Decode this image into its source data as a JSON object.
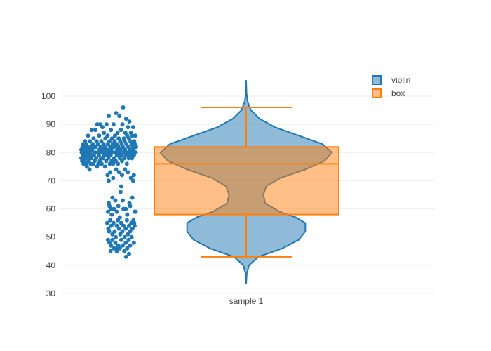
{
  "chart_data": {
    "type": "violin",
    "x_categories": [
      "sample 1"
    ],
    "ylim": [
      30,
      105
    ],
    "y_ticks": [
      30,
      40,
      50,
      60,
      70,
      80,
      90,
      100
    ],
    "grid": true,
    "legend": {
      "position": "top-right",
      "items": [
        "violin",
        "box"
      ]
    },
    "series": [
      {
        "name": "violin",
        "kind": "violin",
        "color": "#1f77b4",
        "fill": "rgba(31,119,180,0.5)",
        "span": [
          33.5,
          105.5
        ],
        "profile": [
          [
            33.5,
            0.0
          ],
          [
            37,
            0.006
          ],
          [
            40,
            0.03
          ],
          [
            43,
            0.13
          ],
          [
            46,
            0.38
          ],
          [
            49,
            0.55
          ],
          [
            52,
            0.62
          ],
          [
            55,
            0.62
          ],
          [
            57,
            0.52
          ],
          [
            59,
            0.35
          ],
          [
            62,
            0.2
          ],
          [
            65,
            0.18
          ],
          [
            68,
            0.21
          ],
          [
            71,
            0.36
          ],
          [
            74,
            0.62
          ],
          [
            77,
            0.82
          ],
          [
            80,
            0.9
          ],
          [
            83,
            0.8
          ],
          [
            86,
            0.55
          ],
          [
            89,
            0.3
          ],
          [
            92,
            0.14
          ],
          [
            95,
            0.05
          ],
          [
            98,
            0.015
          ],
          [
            101,
            0.004
          ],
          [
            105.5,
            0.0
          ]
        ]
      },
      {
        "name": "box",
        "kind": "box",
        "color": "#ff7f0e",
        "fill": "rgba(255,127,14,0.5)",
        "whisker_low": 43,
        "q1": 58,
        "median": 76,
        "q3": 82,
        "whisker_high": 96
      }
    ],
    "points": {
      "color": "#1f77b4",
      "values": [
        [
          46,
          81
        ],
        [
          46,
          78
        ],
        [
          47,
          80
        ],
        [
          48,
          77
        ],
        [
          49,
          82
        ],
        [
          50,
          79
        ],
        [
          51,
          83
        ],
        [
          52,
          76
        ],
        [
          53,
          80
        ],
        [
          54,
          82
        ],
        [
          55,
          78
        ],
        [
          55,
          77
        ],
        [
          56,
          84
        ],
        [
          57,
          81
        ],
        [
          58,
          79
        ],
        [
          59,
          83
        ],
        [
          59,
          76
        ],
        [
          60,
          80
        ],
        [
          61,
          75
        ],
        [
          62,
          82
        ],
        [
          63,
          78
        ],
        [
          64,
          86
        ],
        [
          65,
          81
        ],
        [
          66,
          77
        ],
        [
          67,
          79
        ],
        [
          68,
          74
        ],
        [
          69,
          84
        ],
        [
          70,
          80
        ],
        [
          71,
          76
        ],
        [
          72,
          82
        ],
        [
          73,
          78
        ],
        [
          74,
          88
        ],
        [
          75,
          81
        ],
        [
          76,
          79
        ],
        [
          77,
          83
        ],
        [
          78,
          76
        ],
        [
          79,
          85
        ],
        [
          80,
          79
        ],
        [
          81,
          82
        ],
        [
          82,
          77
        ],
        [
          83,
          80
        ],
        [
          84,
          88
        ],
        [
          85,
          82
        ],
        [
          86,
          78
        ],
        [
          87,
          84
        ],
        [
          88,
          75
        ],
        [
          89,
          90
        ],
        [
          90,
          80
        ],
        [
          91,
          83
        ],
        [
          92,
          76
        ],
        [
          93,
          79
        ],
        [
          94,
          86
        ],
        [
          95,
          81
        ],
        [
          96,
          77
        ],
        [
          97,
          90
        ],
        [
          98,
          82
        ],
        [
          99,
          78
        ],
        [
          100,
          84
        ],
        [
          101,
          76
        ],
        [
          102,
          80
        ],
        [
          103,
          89
        ],
        [
          104,
          81
        ],
        [
          105,
          78
        ],
        [
          106,
          83
        ],
        [
          107,
          87
        ],
        [
          108,
          79
        ],
        [
          109,
          82
        ],
        [
          110,
          75
        ],
        [
          111,
          85
        ],
        [
          112,
          80
        ],
        [
          113,
          77
        ],
        [
          114,
          90
        ],
        [
          115,
          81
        ],
        [
          116,
          79
        ],
        [
          117,
          86
        ],
        [
          118,
          83
        ],
        [
          119,
          78
        ],
        [
          120,
          93
        ],
        [
          121,
          80
        ],
        [
          122,
          84
        ],
        [
          123,
          76
        ],
        [
          124,
          82
        ],
        [
          125,
          79
        ],
        [
          126,
          88
        ],
        [
          127,
          81
        ],
        [
          128,
          77
        ],
        [
          129,
          85
        ],
        [
          130,
          80
        ],
        [
          131,
          83
        ],
        [
          132,
          76
        ],
        [
          133,
          90
        ],
        [
          134,
          82
        ],
        [
          135,
          78
        ],
        [
          136,
          84
        ],
        [
          137,
          86
        ],
        [
          138,
          80
        ],
        [
          139,
          77
        ],
        [
          140,
          94
        ],
        [
          141,
          83
        ],
        [
          142,
          79
        ],
        [
          143,
          81
        ],
        [
          144,
          87
        ],
        [
          145,
          76
        ],
        [
          146,
          82
        ],
        [
          147,
          85
        ],
        [
          148,
          80
        ],
        [
          149,
          93
        ],
        [
          150,
          78
        ],
        [
          151,
          84
        ],
        [
          152,
          81
        ],
        [
          153,
          88
        ],
        [
          154,
          79
        ],
        [
          155,
          83
        ],
        [
          156,
          77
        ],
        [
          157,
          90
        ],
        [
          158,
          82
        ],
        [
          159,
          96
        ],
        [
          160,
          80
        ],
        [
          161,
          85
        ],
        [
          162,
          78
        ],
        [
          163,
          84
        ],
        [
          164,
          81
        ],
        [
          165,
          87
        ],
        [
          166,
          79
        ],
        [
          167,
          92
        ],
        [
          168,
          83
        ],
        [
          169,
          76
        ],
        [
          170,
          86
        ],
        [
          171,
          80
        ],
        [
          172,
          89
        ],
        [
          173,
          82
        ],
        [
          174,
          78
        ],
        [
          175,
          85
        ],
        [
          176,
          91
        ],
        [
          177,
          81
        ],
        [
          178,
          79
        ],
        [
          179,
          84
        ],
        [
          180,
          87
        ],
        [
          181,
          80
        ],
        [
          182,
          83
        ],
        [
          183,
          78
        ],
        [
          184,
          86
        ],
        [
          185,
          82
        ],
        [
          186,
          89
        ],
        [
          187,
          81
        ],
        [
          188,
          79
        ],
        [
          189,
          84
        ],
        [
          190,
          80
        ],
        [
          191,
          83
        ],
        [
          192,
          86
        ],
        [
          193,
          80
        ],
        [
          194,
          82
        ],
        [
          117,
          72
        ],
        [
          124,
          73
        ],
        [
          132,
          71
        ],
        [
          140,
          74
        ],
        [
          148,
          73
        ],
        [
          156,
          72
        ],
        [
          164,
          74
        ],
        [
          172,
          73
        ],
        [
          180,
          71
        ],
        [
          188,
          72
        ],
        [
          120,
          70
        ],
        [
          154,
          68
        ],
        [
          186,
          70
        ],
        [
          120,
          62
        ],
        [
          126,
          60
        ],
        [
          130,
          64
        ],
        [
          138,
          63
        ],
        [
          146,
          61
        ],
        [
          152,
          66
        ],
        [
          158,
          63
        ],
        [
          166,
          60
        ],
        [
          176,
          62
        ],
        [
          184,
          64
        ],
        [
          118,
          59
        ],
        [
          122,
          61
        ],
        [
          128,
          58
        ],
        [
          134,
          60
        ],
        [
          142,
          59
        ],
        [
          150,
          57
        ],
        [
          160,
          60
        ],
        [
          170,
          58
        ],
        [
          178,
          61
        ],
        [
          190,
          59
        ],
        [
          116,
          55
        ],
        [
          119,
          53
        ],
        [
          121,
          52
        ],
        [
          124,
          56
        ],
        [
          127,
          54
        ],
        [
          130,
          51
        ],
        [
          133,
          55
        ],
        [
          136,
          52
        ],
        [
          139,
          50
        ],
        [
          142,
          54
        ],
        [
          145,
          56
        ],
        [
          148,
          53
        ],
        [
          151,
          51
        ],
        [
          154,
          55
        ],
        [
          157,
          52
        ],
        [
          160,
          54
        ],
        [
          163,
          50
        ],
        [
          166,
          53
        ],
        [
          169,
          56
        ],
        [
          172,
          51
        ],
        [
          175,
          54
        ],
        [
          178,
          52
        ],
        [
          181,
          55
        ],
        [
          184,
          53
        ],
        [
          187,
          56
        ],
        [
          190,
          54
        ],
        [
          193,
          59
        ],
        [
          189,
          55
        ],
        [
          118,
          49
        ],
        [
          122,
          48
        ],
        [
          126,
          47
        ],
        [
          130,
          49
        ],
        [
          134,
          46
        ],
        [
          138,
          48
        ],
        [
          142,
          45
        ],
        [
          146,
          47
        ],
        [
          150,
          46
        ],
        [
          154,
          49
        ],
        [
          158,
          47
        ],
        [
          162,
          45
        ],
        [
          166,
          48
        ],
        [
          170,
          46
        ],
        [
          174,
          49
        ],
        [
          178,
          47
        ],
        [
          182,
          50
        ],
        [
          188,
          48
        ],
        [
          125,
          45
        ],
        [
          135,
          46
        ],
        [
          145,
          46
        ],
        [
          167,
          43
        ],
        [
          175,
          44
        ]
      ]
    }
  }
}
